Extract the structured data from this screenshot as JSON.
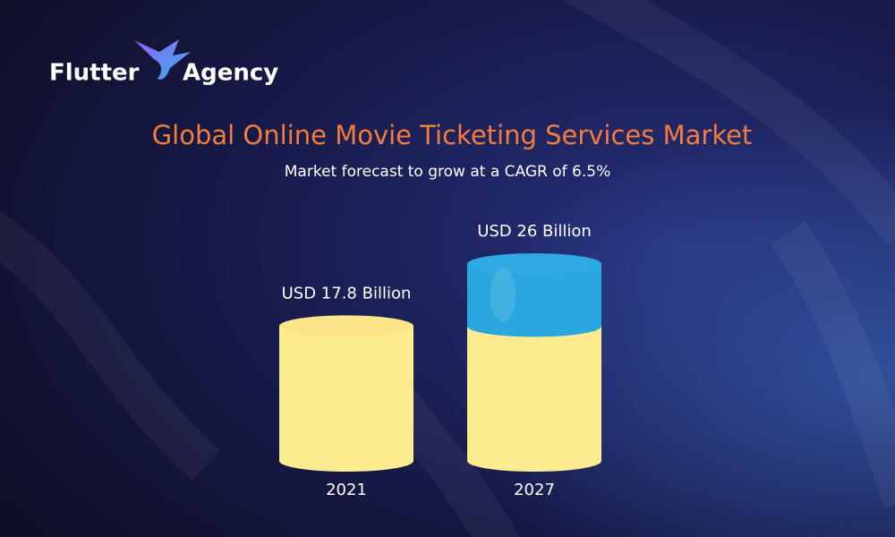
{
  "logo": {
    "words": [
      "Flutter",
      "Agency"
    ]
  },
  "chart_data": {
    "type": "cylinder",
    "title": "Global Online Movie Ticketing Services Market",
    "subtitle": "Market forecast to grow at a CAGR of 6.5%",
    "categories": [
      "2021",
      "2027"
    ],
    "values": [
      17.8,
      26
    ],
    "value_labels": [
      "USD 17.8 Billion",
      "USD 26 Billion"
    ],
    "color": "#fdeb8f",
    "growth_color": "#29a8e0"
  }
}
